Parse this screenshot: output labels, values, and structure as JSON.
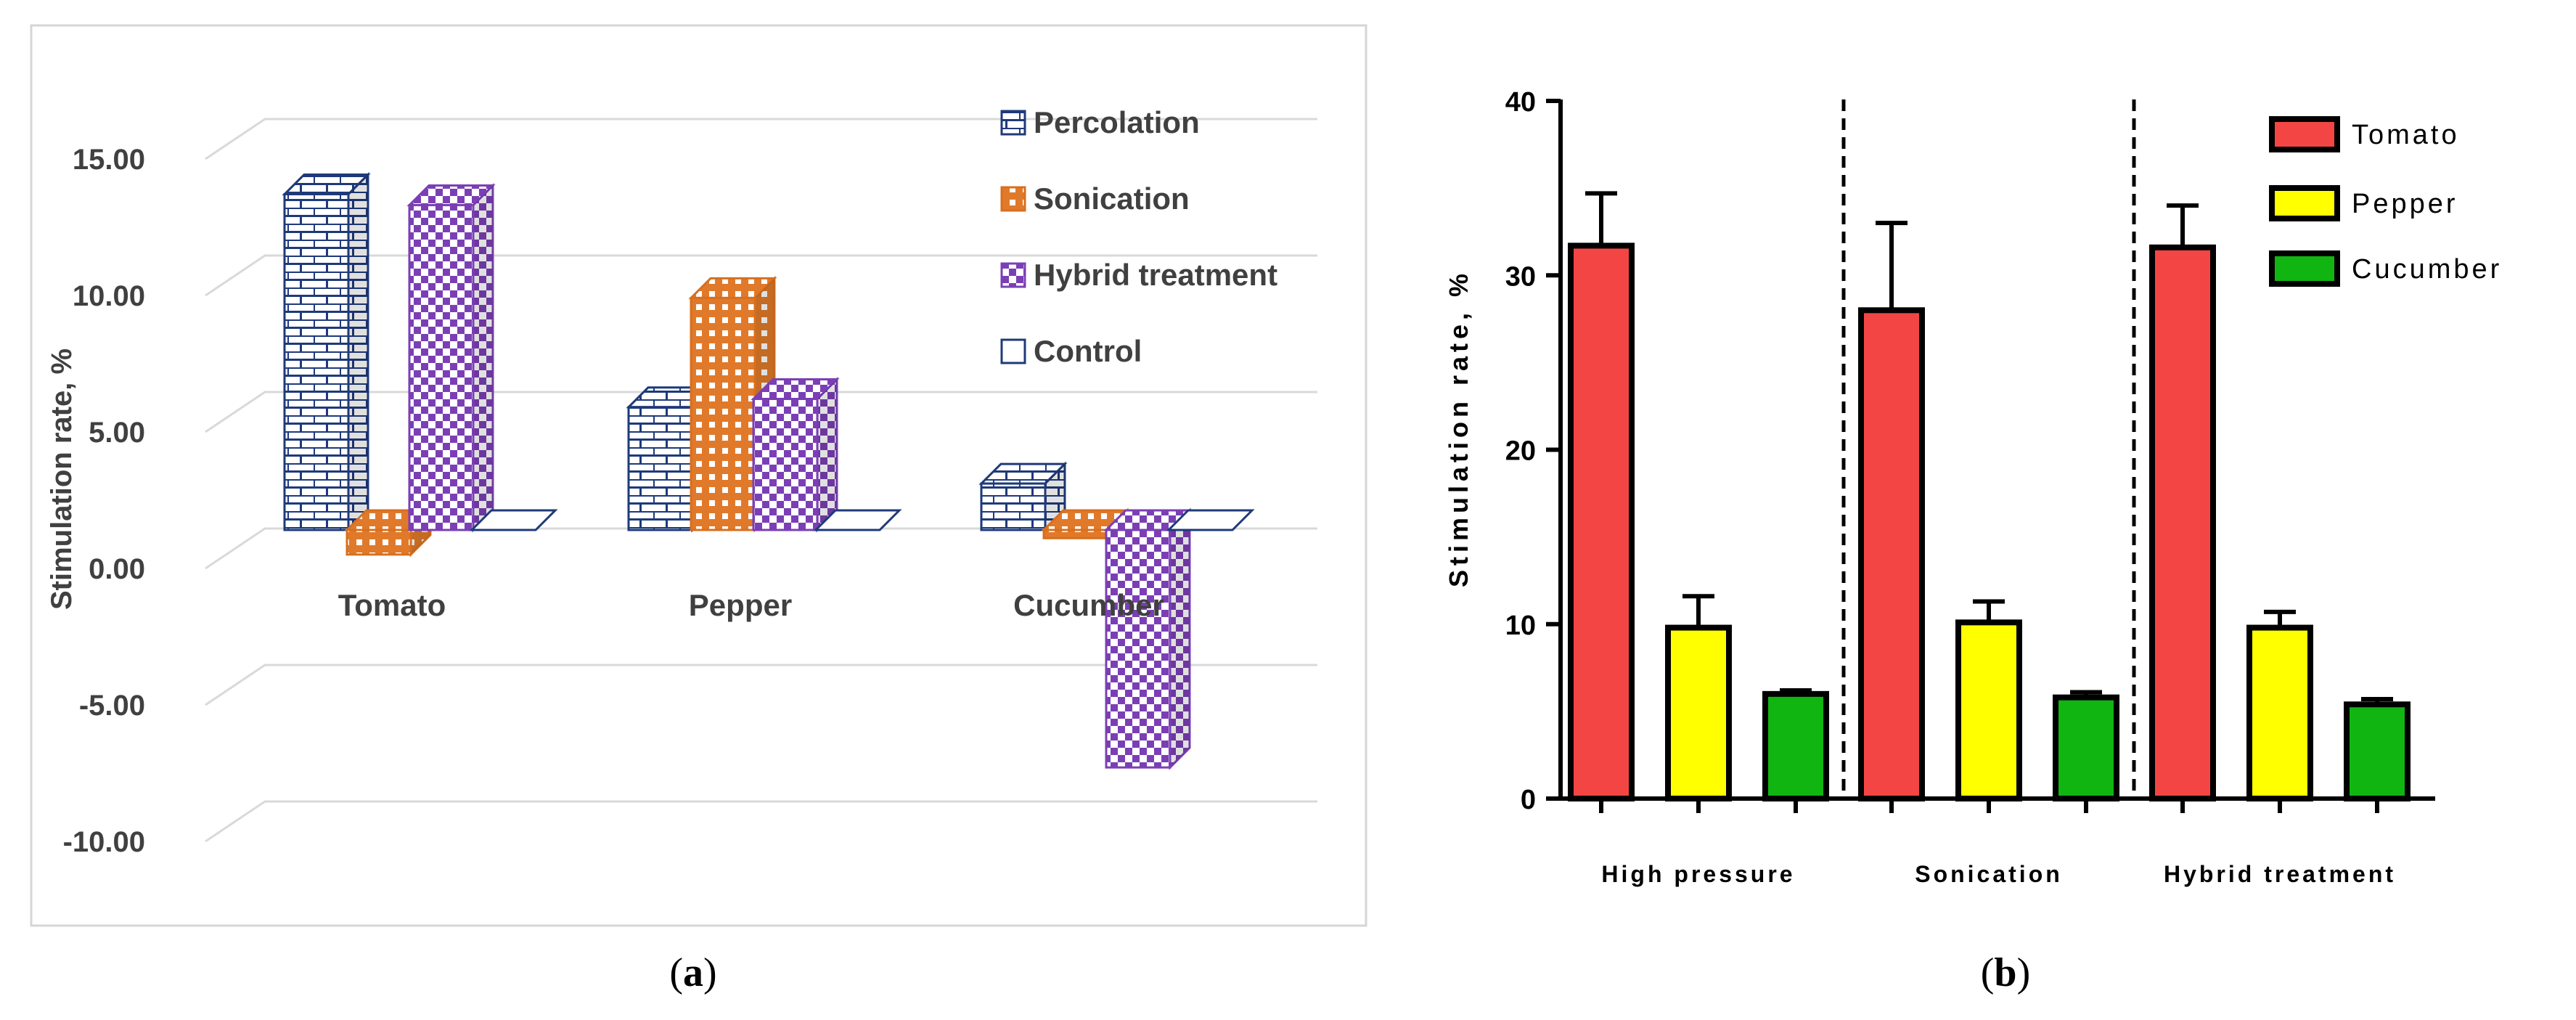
{
  "chart_data": [
    {
      "panel_label": "(a)",
      "panel_letter": "a",
      "type": "bar",
      "style": "3d-column",
      "ylabel": "Stimulation rate, %",
      "ylim": [
        -10,
        15
      ],
      "yticks": [
        15,
        10,
        5,
        0,
        -5,
        -10
      ],
      "ytick_labels": [
        "15.00",
        "10.00",
        "5.00",
        "0.00",
        "-5.00",
        "-10.00"
      ],
      "grid": true,
      "legend_position": "top-right",
      "categories": [
        "Tomato",
        "Pepper",
        "Cucumber"
      ],
      "series": [
        {
          "name": "Percolation",
          "values": [
            12.3,
            4.5,
            1.7
          ],
          "color": "#1f3a7a",
          "pattern": "brick"
        },
        {
          "name": "Sonication",
          "values": [
            -0.9,
            8.5,
            -0.3
          ],
          "color": "#d86f1e",
          "pattern": "crosshatch"
        },
        {
          "name": "Hybrid treatment",
          "values": [
            11.9,
            4.8,
            -8.7
          ],
          "color": "#7b3fb5",
          "pattern": "checker"
        },
        {
          "name": "Control",
          "values": [
            0,
            0,
            0
          ],
          "color": "#1f3a7a",
          "pattern": "none"
        }
      ]
    },
    {
      "panel_label": "(b)",
      "panel_letter": "b",
      "type": "bar",
      "ylabel": "Stimulation rate, %",
      "ylim": [
        0,
        40
      ],
      "yticks": [
        0,
        10,
        20,
        30,
        40
      ],
      "ytick_labels": [
        "0",
        "10",
        "20",
        "30",
        "40"
      ],
      "legend_position": "top-right",
      "categories": [
        "High pressure",
        "Sonication",
        "Hybrid treatment"
      ],
      "series": [
        {
          "name": "Tomato",
          "values": [
            31.7,
            28.0,
            31.6
          ],
          "errors": [
            3.0,
            5.0,
            2.4
          ],
          "color": "#f44545"
        },
        {
          "name": "Pepper",
          "values": [
            9.8,
            10.1,
            9.8
          ],
          "errors": [
            1.8,
            1.2,
            0.9
          ],
          "color": "#ffff00"
        },
        {
          "name": "Cucumber",
          "values": [
            6.0,
            5.8,
            5.4
          ],
          "errors": [
            0.2,
            0.3,
            0.3
          ],
          "color": "#11b511"
        }
      ]
    }
  ]
}
